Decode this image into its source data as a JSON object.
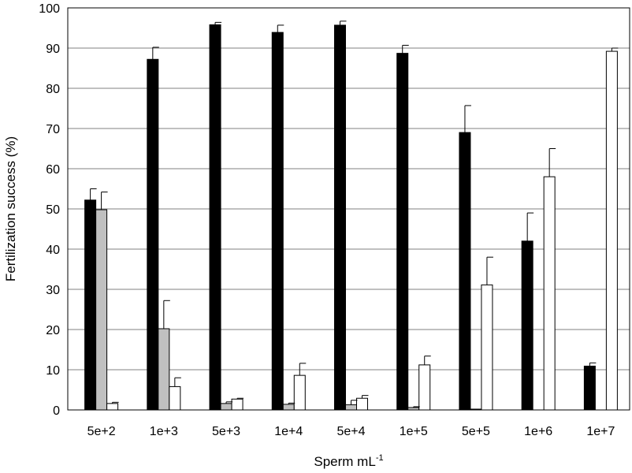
{
  "chart_data": {
    "type": "bar",
    "title": "",
    "xlabel": "Sperm mL",
    "xlabel_superscript": "-1",
    "ylabel": "Fertilization success (%)",
    "ylim": [
      0,
      100
    ],
    "yticks": [
      0,
      10,
      20,
      30,
      40,
      50,
      60,
      70,
      80,
      90,
      100
    ],
    "grid": "horizontal",
    "legend": "none",
    "categories": [
      "5e+2",
      "1e+3",
      "5e+3",
      "1e+4",
      "5e+4",
      "1e+5",
      "5e+5",
      "1e+6",
      "1e+7"
    ],
    "series": [
      {
        "color": "#000000",
        "values": [
          52.2,
          87.2,
          95.8,
          93.9,
          95.7,
          88.7,
          69,
          42,
          10.9
        ],
        "errors": [
          2.8,
          3,
          0.6,
          1.8,
          1,
          2,
          6.7,
          7,
          0.8
        ]
      },
      {
        "color": "#c0c0c0",
        "values": [
          49.8,
          20.2,
          1.6,
          1.4,
          1.3,
          0.6,
          0.2,
          null,
          null
        ],
        "errors": [
          4.4,
          7,
          0.4,
          0.3,
          1.1,
          0.2,
          0,
          null,
          null
        ]
      },
      {
        "color": "#ffffff",
        "values": [
          1.6,
          5.8,
          2.7,
          8.6,
          2.9,
          11.2,
          31.1,
          58,
          89.2
        ],
        "errors": [
          0.3,
          2.2,
          0.2,
          3,
          0.7,
          2.2,
          6.9,
          7,
          0.8
        ]
      }
    ]
  }
}
